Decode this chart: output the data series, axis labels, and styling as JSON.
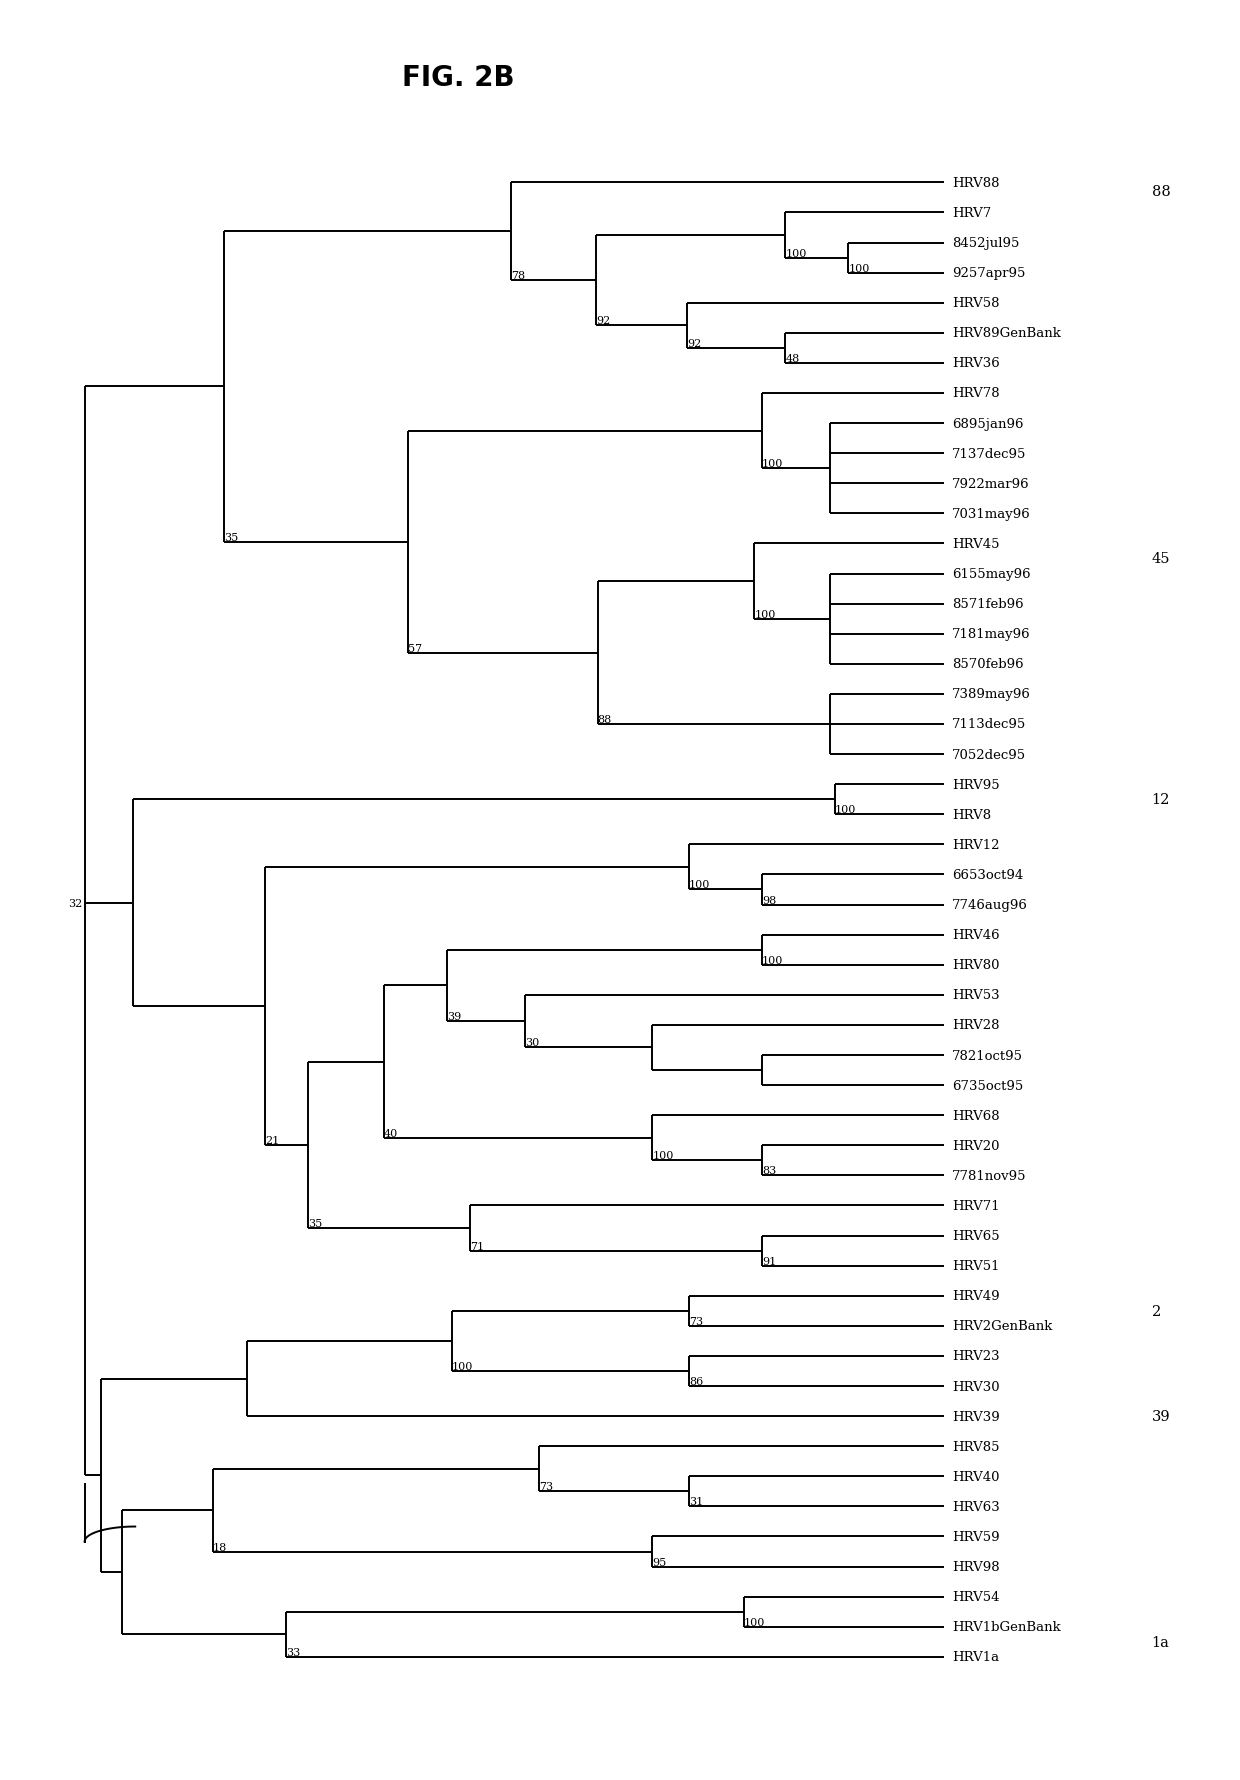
{
  "title": "FIG. 2B",
  "bg": "#ffffff",
  "lc": "#000000",
  "lw": 1.4,
  "fs": 9.5,
  "title_fs": 20,
  "taxa": [
    "HRV88",
    "HRV7",
    "8452jul95",
    "9257apr95",
    "HRV58",
    "HRV89GenBank",
    "HRV36",
    "HRV78",
    "6895jan96",
    "7137dec95",
    "7922mar96",
    "7031may96",
    "HRV45",
    "6155may96",
    "8571feb96",
    "7181may96",
    "8570feb96",
    "7389may96",
    "7113dec95",
    "7052dec95",
    "HRV95",
    "HRV8",
    "HRV12",
    "6653oct94",
    "7746aug96",
    "HRV46",
    "HRV80",
    "HRV53",
    "HRV28",
    "7821oct95",
    "6735oct95",
    "HRV68",
    "HRV20",
    "7781nov95",
    "HRV71",
    "HRV65",
    "HRV51",
    "HRV49",
    "HRV2GenBank",
    "HRV23",
    "HRV30",
    "HRV39",
    "HRV85",
    "HRV40",
    "HRV63",
    "HRV59",
    "HRV98",
    "HRV54",
    "HRV1bGenBank",
    "HRV1a"
  ],
  "clade_labels": [
    {
      "label": "88",
      "taxon_idx": 0
    },
    {
      "label": "45",
      "taxon_idx": 12
    },
    {
      "label": "12",
      "taxon_idx": 21
    },
    {
      "label": "2",
      "taxon_idx": 37
    },
    {
      "label": "39",
      "taxon_idx": 41
    },
    {
      "label": "1a",
      "taxon_idx": 49
    }
  ]
}
